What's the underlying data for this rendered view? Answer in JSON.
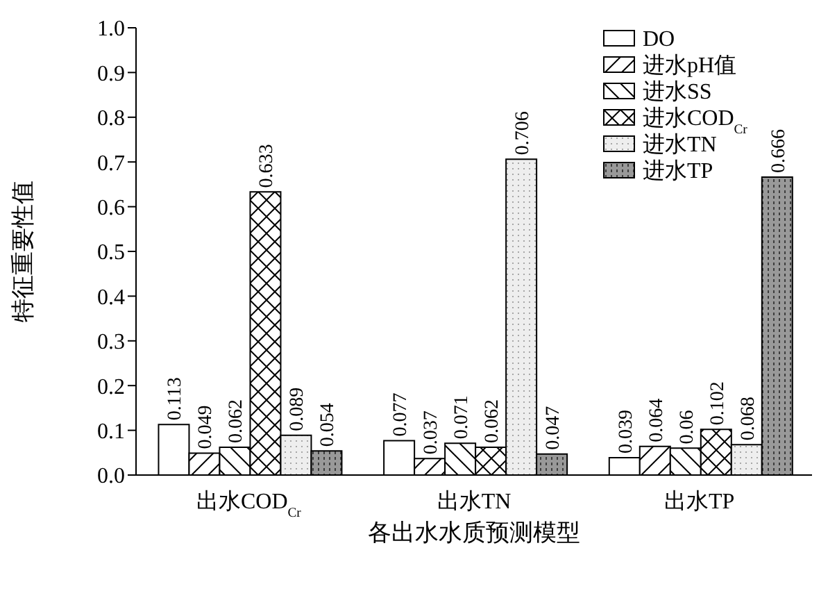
{
  "chart_data": {
    "type": "bar",
    "xlabel": "各出水水质预测模型",
    "ylabel": "特征重要性值",
    "categories": [
      "出水COD$_{Cr}$",
      "出水TN",
      "出水TP"
    ],
    "series": [
      {
        "name": "DO",
        "color": "#000000",
        "values": [
          0.113,
          0.077,
          0.039
        ]
      },
      {
        "name": "进水pH值",
        "color": "#000000",
        "values": [
          0.049,
          0.037,
          0.064
        ]
      },
      {
        "name": "进水SS",
        "color": "#000000",
        "values": [
          0.062,
          0.071,
          0.06
        ]
      },
      {
        "name": "进水COD$_{Cr}$",
        "color": "#000000",
        "values": [
          0.633,
          0.062,
          0.102
        ]
      },
      {
        "name": "进水TN",
        "color": "#000000",
        "values": [
          0.089,
          0.706,
          0.068
        ]
      },
      {
        "name": "进水TP",
        "color": "#000000",
        "values": [
          0.054,
          0.047,
          0.666
        ]
      }
    ],
    "ylim": [
      0,
      1
    ],
    "yticks": [
      {
        "value": 0,
        "label": "0.0"
      },
      0.1,
      0.2,
      0.3,
      0.4,
      0.5,
      0.6,
      0.7,
      0.8,
      0.9,
      {
        "value": 1,
        "label": "1.0"
      }
    ],
    "data_labels": true,
    "grid": false,
    "legend": "top right"
  }
}
